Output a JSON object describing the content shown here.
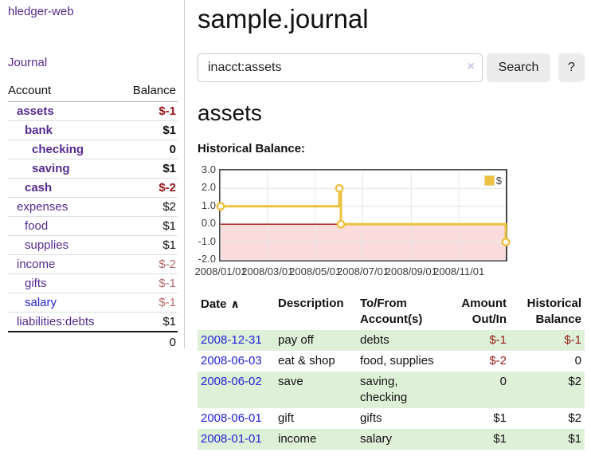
{
  "colors": {
    "link_purple": "#552a8f",
    "link_blue": "#2323d8",
    "negative_strong": "#96151a",
    "negative_soft": "#b4686c",
    "row_stripe_green": "#dff0d8",
    "chart_line_gold": "#edc240",
    "chart_negative_fill": "#fbdcdc",
    "chart_zero_line": "#9c1310",
    "button_bg": "#ececec"
  },
  "sidebar": {
    "brand": "hledger-web",
    "nav": [
      {
        "label": "Journal"
      }
    ],
    "table": {
      "headers": {
        "account": "Account",
        "balance": "Balance"
      },
      "accounts": [
        {
          "name": "assets",
          "balance": "$-1",
          "level": 0,
          "bold": true,
          "bal_class": "neg-strong"
        },
        {
          "name": "bank",
          "balance": "$1",
          "level": 1,
          "bold": true,
          "bal_class": "pos"
        },
        {
          "name": "checking",
          "balance": "0",
          "level": 2,
          "bold": true,
          "bal_class": "pos"
        },
        {
          "name": "saving",
          "balance": "$1",
          "level": 2,
          "bold": true,
          "bal_class": "pos"
        },
        {
          "name": "cash",
          "balance": "$-2",
          "level": 1,
          "bold": true,
          "bal_class": "neg-strong"
        },
        {
          "name": "expenses",
          "balance": "$2",
          "level": 0,
          "bold": false,
          "bal_class": "pos"
        },
        {
          "name": "food",
          "balance": "$1",
          "level": 1,
          "bold": false,
          "bal_class": "pos"
        },
        {
          "name": "supplies",
          "balance": "$1",
          "level": 1,
          "bold": false,
          "bal_class": "pos"
        },
        {
          "name": "income",
          "balance": "$-2",
          "level": 0,
          "bold": false,
          "bal_class": "neg"
        },
        {
          "name": "gifts",
          "balance": "$-1",
          "level": 1,
          "bold": false,
          "bal_class": "neg"
        },
        {
          "name": "salary",
          "balance": "$-1",
          "level": 1,
          "bold": false,
          "bal_class": "neg",
          "unvisited": true
        },
        {
          "name": "liabilities:debts",
          "balance": "$1",
          "level": 0,
          "bold": false,
          "bal_class": "pos"
        }
      ],
      "total": "0"
    }
  },
  "main": {
    "title": "sample.journal",
    "search": {
      "value": "inacct:assets",
      "clear_icon": "×",
      "search_button": "Search",
      "help_button": "?"
    },
    "heading": "assets",
    "chart_title": "Historical Balance:"
  },
  "chart_data": {
    "type": "line",
    "title": "Historical Balance",
    "step": true,
    "series": [
      {
        "name": "$",
        "color": "#edc240",
        "points": [
          {
            "x": "2008-01-01",
            "y": 1
          },
          {
            "x": "2008-06-01",
            "y": 2
          },
          {
            "x": "2008-06-03",
            "y": 0
          },
          {
            "x": "2008-12-31",
            "y": -1
          }
        ]
      }
    ],
    "xlim": [
      "2008-01-01",
      "2008-12-31"
    ],
    "ylim": [
      -2,
      3
    ],
    "y_ticks": [
      3.0,
      2.0,
      1.0,
      0.0,
      -1.0,
      -2.0
    ],
    "x_ticks": [
      {
        "label": "2008/01/01",
        "date": "2008-01-01"
      },
      {
        "label": "2008/03/01",
        "date": "2008-03-01"
      },
      {
        "label": "2008/05/01",
        "date": "2008-05-01"
      },
      {
        "label": "2008/07/01",
        "date": "2008-07-01"
      },
      {
        "label": "2008/09/01",
        "date": "2008-09-01"
      },
      {
        "label": "2008/11/01",
        "date": "2008-11-01"
      }
    ],
    "legend": {
      "label": "$",
      "position": "top-right"
    },
    "negative_region": {
      "from": -2,
      "to": 0,
      "fill": "#fbdcdc",
      "line_color": "#9c1310"
    },
    "grid": true
  },
  "register": {
    "headers": {
      "date": "Date",
      "sort_icon": "∧",
      "description": "Description",
      "accounts": "To/From\nAccount(s)",
      "amount": "Amount\nOut/In",
      "balance": "Historical\nBalance"
    },
    "rows": [
      {
        "date": "2008-12-31",
        "description": "pay off",
        "accounts": "debts",
        "amount": "$-1",
        "balance": "$-1",
        "amount_neg": true,
        "balance_neg": true
      },
      {
        "date": "2008-06-03",
        "description": "eat & shop",
        "accounts": "food, supplies",
        "amount": "$-2",
        "balance": "0",
        "amount_neg": true,
        "balance_neg": false
      },
      {
        "date": "2008-06-02",
        "description": "save",
        "accounts": "saving,\nchecking",
        "amount": "0",
        "balance": "$2",
        "amount_neg": false,
        "balance_neg": false
      },
      {
        "date": "2008-06-01",
        "description": "gift",
        "accounts": "gifts",
        "amount": "$1",
        "balance": "$2",
        "amount_neg": false,
        "balance_neg": false
      },
      {
        "date": "2008-01-01",
        "description": "income",
        "accounts": "salary",
        "amount": "$1",
        "balance": "$1",
        "amount_neg": false,
        "balance_neg": false
      }
    ]
  }
}
